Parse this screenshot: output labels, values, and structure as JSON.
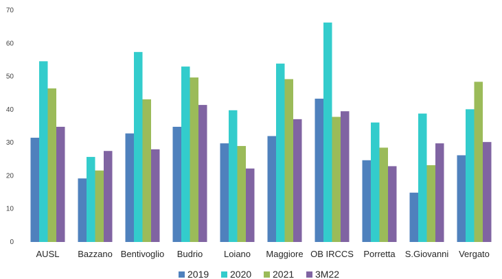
{
  "chart_data": {
    "type": "bar",
    "categories": [
      "AUSL",
      "Bazzano",
      "Bentivoglio",
      "Budrio",
      "Loiano",
      "Maggiore",
      "OB IRCCS",
      "Porretta",
      "S.Giovanni",
      "Vergato"
    ],
    "series": [
      {
        "name": "2019",
        "color": "#4f81bd",
        "values": [
          31.5,
          19.2,
          32.8,
          34.8,
          29.8,
          32.0,
          43.3,
          24.7,
          14.9,
          26.2
        ]
      },
      {
        "name": "2020",
        "color": "#33cccc",
        "values": [
          54.6,
          25.7,
          57.4,
          53.0,
          39.8,
          53.9,
          66.3,
          36.1,
          38.8,
          40.1
        ]
      },
      {
        "name": "2021",
        "color": "#9bbb59",
        "values": [
          46.4,
          21.6,
          43.1,
          49.7,
          29.0,
          49.2,
          37.8,
          28.5,
          23.2,
          48.4
        ]
      },
      {
        "name": "3M22",
        "color": "#8064a2",
        "values": [
          34.8,
          27.5,
          28.0,
          41.4,
          22.2,
          37.1,
          39.5,
          22.9,
          29.8,
          30.2
        ]
      }
    ],
    "yticks": [
      0,
      10,
      20,
      30,
      40,
      50,
      60,
      70
    ],
    "ylim": [
      0,
      70
    ],
    "grid": false,
    "legend": "bottom-center",
    "title": "",
    "xlabel": "",
    "ylabel": ""
  }
}
